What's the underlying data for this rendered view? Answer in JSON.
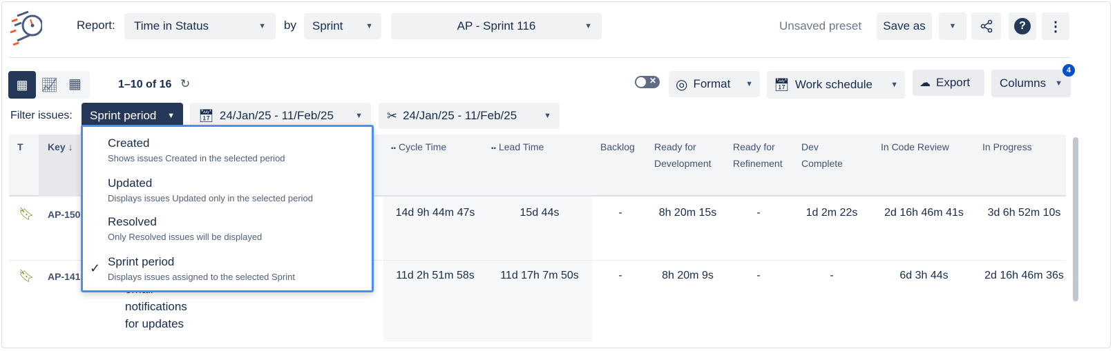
{
  "header": {
    "report_label": "Report:",
    "report_value": "Time in Status",
    "by_label": "by",
    "by_value": "Sprint",
    "sprint_value": "AP - Sprint 116",
    "preset_status": "Unsaved preset",
    "save_as": "Save as"
  },
  "toolbar": {
    "pagination": "1–10 of 16",
    "format": "Format",
    "work_schedule": "Work schedule",
    "export": "Export",
    "columns": "Columns",
    "columns_badge": "4"
  },
  "filter": {
    "label": "Filter issues:",
    "mode": "Sprint period",
    "date_range_1": "24/Jan/25 - 11/Feb/25",
    "date_range_2": "24/Jan/25 - 11/Feb/25"
  },
  "dropdown": {
    "options": [
      {
        "title": "Created",
        "desc": "Shows issues Created in the selected period",
        "selected": false
      },
      {
        "title": "Updated",
        "desc": "Displays issues Updated only in the selected period",
        "selected": false
      },
      {
        "title": "Resolved",
        "desc": "Only Resolved issues will be displayed",
        "selected": false
      },
      {
        "title": "Sprint period",
        "desc": "Displays issues assigned to the selected Sprint",
        "selected": true
      }
    ]
  },
  "table": {
    "headers": {
      "type": "T",
      "key": "Key ↓",
      "cycle": "Cycle Time",
      "lead": "Lead Time",
      "backlog": "Backlog",
      "rfd": "Ready for Development",
      "rfr": "Ready for Refinement",
      "dev": "Dev Complete",
      "review": "In Code Review",
      "progress": "In Progress"
    },
    "rows": [
      {
        "key": "AP-150",
        "summary": "",
        "cycle": "14d 9h 44m 47s",
        "lead": "15d 44s",
        "backlog": "-",
        "rfd": "8h 20m 15s",
        "rfr": "-",
        "dev": "1d 2m 22s",
        "review": "2d 16h 46m 41s",
        "progress": "3d 6h 52m 10s"
      },
      {
        "key": "AP-141",
        "summary": "email notifications for updates",
        "cycle": "11d 2h 51m 58s",
        "lead": "11d 17h 7m 50s",
        "backlog": "-",
        "rfd": "8h 20m 9s",
        "rfr": "-",
        "dev": "-",
        "review": "6d 3h 44s",
        "progress": "2d 16h 46m 36s"
      }
    ]
  },
  "colors": {
    "primary": "#253858",
    "accent": "#0052cc",
    "dropdown_border": "#4c8ef7",
    "story_icon": "#6a9a23",
    "logo_orange": "#ff5630"
  }
}
